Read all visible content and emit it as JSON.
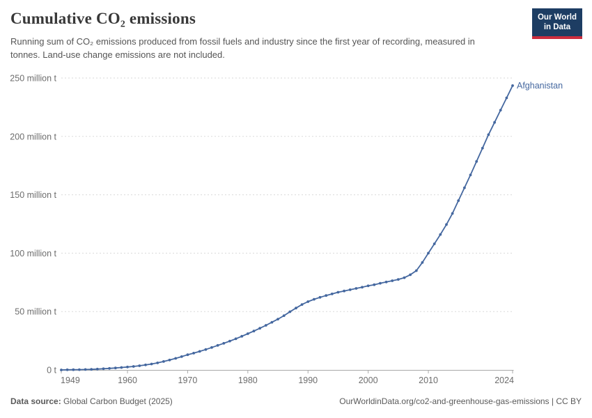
{
  "header": {
    "title": "Cumulative CO₂ emissions",
    "subtitle": "Running sum of CO₂ emissions produced from fossil fuels and industry since the first year of recording, measured in tonnes. Land-use change emissions are not included.",
    "logo": {
      "line1": "Our World",
      "line2": "in Data"
    }
  },
  "footer": {
    "data_source_label": "Data source:",
    "data_source_value": " Global Carbon Budget (2025)",
    "credit": "OurWorldinData.org/co2-and-greenhouse-gas-emissions | CC BY"
  },
  "colors": {
    "accent_line": "#44679f",
    "grid": "#dadada",
    "axis": "#a9a9a9",
    "tick_text": "#6d6d6d",
    "logo_bg": "#1d3d63",
    "logo_bar": "#cc2d3e",
    "title_text": "#383838",
    "subtitle_text": "#555555",
    "footer_text": "#5a5a5a"
  },
  "chart_data": {
    "type": "line",
    "title": "Cumulative CO₂ emissions",
    "xlabel": "",
    "ylabel": "",
    "unit": "tonnes",
    "xlim": [
      1949,
      2024
    ],
    "ylim": [
      0,
      250
    ],
    "grid": "horizontal-dashed",
    "legend_position": "line-end-label",
    "x_ticks": [
      1949,
      1960,
      1970,
      1980,
      1990,
      2000,
      2010,
      2024
    ],
    "y_ticks": [
      {
        "value": 0,
        "label": "0 t"
      },
      {
        "value": 50,
        "label": "50 million t"
      },
      {
        "value": 100,
        "label": "100 million t"
      },
      {
        "value": 150,
        "label": "150 million t"
      },
      {
        "value": 200,
        "label": "200 million t"
      },
      {
        "value": 250,
        "label": "250 million t"
      }
    ],
    "x": [
      1949,
      1950,
      1951,
      1952,
      1953,
      1954,
      1955,
      1956,
      1957,
      1958,
      1959,
      1960,
      1961,
      1962,
      1963,
      1964,
      1965,
      1966,
      1967,
      1968,
      1969,
      1970,
      1971,
      1972,
      1973,
      1974,
      1975,
      1976,
      1977,
      1978,
      1979,
      1980,
      1981,
      1982,
      1983,
      1984,
      1985,
      1986,
      1987,
      1988,
      1989,
      1990,
      1991,
      1992,
      1993,
      1994,
      1995,
      1996,
      1997,
      1998,
      1999,
      2000,
      2001,
      2002,
      2003,
      2004,
      2005,
      2006,
      2007,
      2008,
      2009,
      2010,
      2011,
      2012,
      2013,
      2014,
      2015,
      2016,
      2017,
      2018,
      2019,
      2020,
      2021,
      2022,
      2023,
      2024
    ],
    "series": [
      {
        "name": "Afghanistan",
        "color": "#44679f",
        "values_unit": "million t",
        "values": [
          0.02,
          0.09,
          0.16,
          0.25,
          0.35,
          0.5,
          0.7,
          1.0,
          1.3,
          1.7,
          2.1,
          2.5,
          3.0,
          3.6,
          4.3,
          5.1,
          6.0,
          7.2,
          8.5,
          9.9,
          11.4,
          13.0,
          14.4,
          15.9,
          17.5,
          19.2,
          21.0,
          22.8,
          24.7,
          26.7,
          28.8,
          31.0,
          33.3,
          35.7,
          38.2,
          40.8,
          43.5,
          46.5,
          49.8,
          53.0,
          56.0,
          58.5,
          60.5,
          62.2,
          63.7,
          65.1,
          66.5,
          67.6,
          68.7,
          69.8,
          70.8,
          72.0,
          73.0,
          74.2,
          75.3,
          76.4,
          77.5,
          79.0,
          81.5,
          85.0,
          92.0,
          100.0,
          108.0,
          116.0,
          124.5,
          134.0,
          145.0,
          156.0,
          167.0,
          178.5,
          190.0,
          201.5,
          212.0,
          222.5,
          233.0,
          243.5
        ]
      }
    ]
  }
}
